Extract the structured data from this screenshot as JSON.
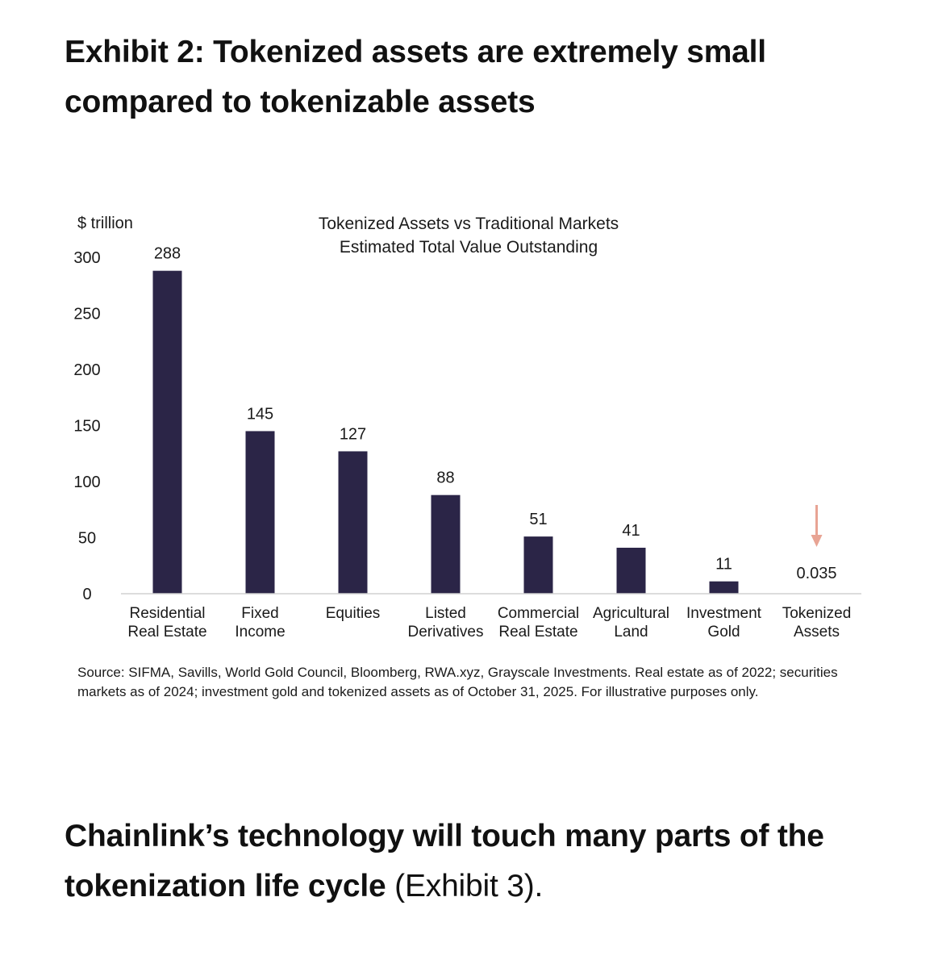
{
  "exhibit_title": "Exhibit 2: Tokenized assets are extremely small compared to tokenizable assets",
  "source_note": "Source: SIFMA, Savills, World Gold Council, Bloomberg, RWA.xyz, Grayscale Investments. Real estate as of 2022; securities markets as of 2024; investment gold and tokenized assets as of October 31, 2025. For illustrative purposes only.",
  "bottom_heading": {
    "bold": "Chainlink’s technology will touch many parts of the tokenization life cycle",
    "normal": " (Exhibit 3)."
  },
  "colors": {
    "bar": "#2b2547",
    "arrow": "#e8a494",
    "axis": "#d0d0d0"
  },
  "chart_data": {
    "type": "bar",
    "title_lines": [
      "Tokenized Assets vs Traditional Markets",
      "Estimated Total Value Outstanding"
    ],
    "ylabel": "$ trillion",
    "xlabel": "",
    "ylim": [
      0,
      300
    ],
    "yticks": [
      0,
      50,
      100,
      150,
      200,
      250,
      300
    ],
    "grid": false,
    "categories": [
      [
        "Residential",
        "Real Estate"
      ],
      [
        "Fixed",
        "Income"
      ],
      [
        "Equities"
      ],
      [
        "Listed",
        "Derivatives"
      ],
      [
        "Commercial",
        "Real Estate"
      ],
      [
        "Agricultural",
        "Land"
      ],
      [
        "Investment",
        "Gold"
      ],
      [
        "Tokenized",
        "Assets"
      ]
    ],
    "values": [
      288,
      145,
      127,
      88,
      51,
      41,
      11,
      0.035
    ],
    "value_labels": [
      "288",
      "145",
      "127",
      "88",
      "51",
      "41",
      "11",
      "0.035"
    ],
    "annotation": {
      "type": "down-arrow",
      "category_index": 7
    }
  }
}
